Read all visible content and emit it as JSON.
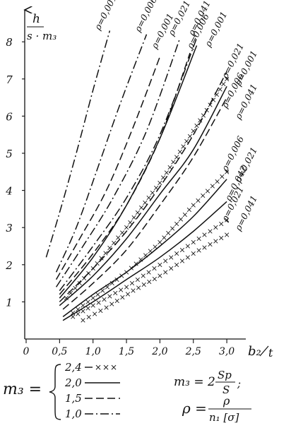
{
  "chart_data": {
    "type": "line",
    "y_axis_label": {
      "numerator": "h",
      "denominator": "s · m₃"
    },
    "x_axis_label": {
      "numerator": "b₂",
      "denominator": "t"
    },
    "x_ticks": [
      "0",
      "0,5",
      "1,0",
      "1,5",
      "2,0",
      "2,5",
      "3,0"
    ],
    "y_ticks": [
      "1",
      "2",
      "3",
      "4",
      "5",
      "6",
      "7",
      "8"
    ],
    "xlim": [
      0,
      3.4
    ],
    "ylim": [
      0,
      8.5
    ],
    "legend": {
      "symbol": "m₃ =",
      "entries": [
        {
          "value": "2,4",
          "style": "cross"
        },
        {
          "value": "2,0",
          "style": "solid"
        },
        {
          "value": "1,5",
          "style": "dash"
        },
        {
          "value": "1,0",
          "style": "dashdot"
        }
      ]
    },
    "formulas": {
      "m3": {
        "lhs": "m₃ = 2",
        "num": "Sp",
        "den": "S",
        "tail": ";"
      },
      "rho": {
        "lhs": "ρ =",
        "num": "ρ",
        "den": "n₁ [σ]"
      }
    },
    "series": [
      {
        "name": "ρ=0,001",
        "m3": "1,0",
        "style": "dashdot",
        "x": [
          0.3,
          0.5,
          0.75,
          1.0,
          1.25
        ],
        "y": [
          2.2,
          3.4,
          5.0,
          6.7,
          8.3
        ]
      },
      {
        "name": "ρ=0,006",
        "m3": "1,0",
        "style": "dashdot",
        "x": [
          0.45,
          0.75,
          1.05,
          1.4,
          1.8
        ],
        "y": [
          1.8,
          3.0,
          4.5,
          6.3,
          8.2
        ]
      },
      {
        "name": "ρ=0,001",
        "m3": "1,5",
        "style": "dash",
        "x": [
          0.45,
          0.8,
          1.2,
          1.6,
          2.0
        ],
        "y": [
          1.6,
          2.7,
          4.0,
          5.7,
          7.6
        ]
      },
      {
        "name": "ρ=0,021",
        "m3": "1,0",
        "style": "dashdot",
        "x": [
          0.45,
          0.85,
          1.3,
          1.8,
          2.3
        ],
        "y": [
          1.4,
          2.5,
          3.8,
          5.6,
          8.1
        ]
      },
      {
        "name": "ρ=0,041",
        "m3": "1,0",
        "style": "dashdot",
        "x": [
          0.5,
          1.0,
          1.5,
          2.0,
          2.55
        ],
        "y": [
          1.3,
          2.5,
          3.8,
          5.5,
          8.1
        ]
      },
      {
        "name": "ρ=0,006",
        "m3": "1,5",
        "style": "dash",
        "x": [
          0.5,
          1.0,
          1.5,
          2.0,
          2.45
        ],
        "y": [
          1.2,
          2.3,
          3.6,
          5.4,
          7.7
        ]
      },
      {
        "name": "ρ=0,001",
        "m3": "2,0",
        "style": "solid",
        "x": [
          0.5,
          1.0,
          1.5,
          2.0,
          2.55
        ],
        "y": [
          1.1,
          2.2,
          3.6,
          5.4,
          7.9
        ]
      },
      {
        "name": "ρ=0,021",
        "m3": "1,5",
        "style": "dash",
        "x": [
          0.5,
          1.0,
          1.5,
          2.0,
          2.5,
          3.0
        ],
        "y": [
          1.0,
          1.9,
          2.9,
          4.1,
          5.5,
          7.2
        ]
      },
      {
        "name": "ρ=0,001",
        "m3": "2,4",
        "style": "cross",
        "x": [
          0.6,
          1.0,
          1.5,
          2.0,
          2.5,
          3.0
        ],
        "y": [
          1.1,
          1.9,
          3.0,
          4.2,
          5.6,
          7.0
        ]
      },
      {
        "name": "ρ=0,006",
        "m3": "2,0",
        "style": "solid",
        "x": [
          0.5,
          1.0,
          1.5,
          2.0,
          2.5,
          3.0
        ],
        "y": [
          0.9,
          1.7,
          2.7,
          3.9,
          5.1,
          6.8
        ]
      },
      {
        "name": "ρ=0,041",
        "m3": "1,5",
        "style": "dash",
        "x": [
          0.55,
          1.0,
          1.5,
          2.0,
          2.5,
          3.0
        ],
        "y": [
          0.8,
          1.5,
          2.4,
          3.6,
          4.9,
          6.5
        ]
      },
      {
        "name": "ρ=0,006",
        "m3": "2,4",
        "style": "cross",
        "x": [
          0.7,
          1.0,
          1.5,
          2.0,
          2.5,
          3.0
        ],
        "y": [
          0.7,
          1.1,
          1.8,
          2.6,
          3.6,
          4.5
        ]
      },
      {
        "name": "ρ=0,021",
        "m3": "2,0",
        "style": "solid",
        "x": [
          0.55,
          1.0,
          1.5,
          2.0,
          2.5,
          3.0
        ],
        "y": [
          0.6,
          1.2,
          1.8,
          2.5,
          3.3,
          4.3
        ]
      },
      {
        "name": "ρ=0,042",
        "m3": "2,0",
        "style": "solid",
        "x": [
          0.55,
          1.0,
          1.5,
          2.0,
          2.5,
          3.0
        ],
        "y": [
          0.5,
          1.0,
          1.6,
          2.2,
          2.9,
          3.7
        ]
      },
      {
        "name": "ρ=0,021",
        "m3": "2,4",
        "style": "cross",
        "x": [
          0.7,
          1.0,
          1.5,
          2.0,
          2.5,
          3.0
        ],
        "y": [
          0.6,
          0.9,
          1.4,
          2.0,
          2.6,
          3.2
        ]
      },
      {
        "name": "ρ=0,041",
        "m3": "2,4",
        "style": "cross",
        "x": [
          0.85,
          1.2,
          1.6,
          2.0,
          2.5,
          3.0
        ],
        "y": [
          0.5,
          0.85,
          1.3,
          1.7,
          2.3,
          2.8
        ]
      }
    ],
    "curve_labels": [
      {
        "text": "ρ=0,001",
        "x": 1.1,
        "y": 8.3
      },
      {
        "text": "ρ=0,006",
        "x": 1.7,
        "y": 8.25
      },
      {
        "text": "ρ=0,001",
        "x": 1.95,
        "y": 7.8
      },
      {
        "text": "ρ=0,021",
        "x": 2.2,
        "y": 8.15
      },
      {
        "text": "ρ=0,041",
        "x": 2.5,
        "y": 8.15
      },
      {
        "text": "ρ=0,006",
        "x": 2.48,
        "y": 7.8
      },
      {
        "text": "ρ=0,001",
        "x": 2.75,
        "y": 7.85
      },
      {
        "text": "ρ=0,021",
        "x": 3.0,
        "y": 7.0
      },
      {
        "text": "ρ=0,001",
        "x": 3.2,
        "y": 6.8
      },
      {
        "text": "ρ=0,006",
        "x": 3.0,
        "y": 6.2
      },
      {
        "text": "ρ=0,041",
        "x": 3.2,
        "y": 5.9
      },
      {
        "text": "ρ=0,006",
        "x": 3.0,
        "y": 4.5
      },
      {
        "text": "ρ=0,021",
        "x": 3.2,
        "y": 4.2
      },
      {
        "text": "ρ=0,042",
        "x": 3.05,
        "y": 3.7
      },
      {
        "text": "ρ=0,021",
        "x": 3.0,
        "y": 3.15
      },
      {
        "text": "ρ=0,041",
        "x": 3.2,
        "y": 2.9
      }
    ]
  }
}
